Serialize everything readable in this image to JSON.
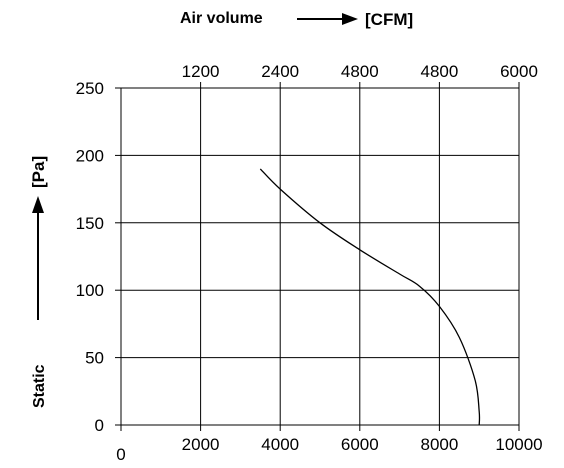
{
  "chart_data": {
    "type": "line",
    "x_bottom": {
      "ticks": [
        "0",
        "2000",
        "4000",
        "6000",
        "8000",
        "10000"
      ],
      "range": [
        0,
        10000
      ]
    },
    "x_top": {
      "label": "Air volume",
      "unit": "[CFM]",
      "ticks": [
        "1200",
        "2400",
        "4800",
        "4800",
        "6000"
      ]
    },
    "y": {
      "label": "Static",
      "unit": "[Pa]",
      "ticks": [
        "0",
        "50",
        "100",
        "150",
        "200",
        "250"
      ],
      "range": [
        0,
        250
      ]
    },
    "grid": true,
    "series": [
      {
        "x": [
          3500,
          4000,
          5000,
          6000,
          7000,
          7500,
          8000,
          8500,
          8900,
          9000,
          9000
        ],
        "y": [
          190,
          175,
          150,
          130,
          112,
          103,
          88,
          65,
          33,
          10,
          0
        ]
      }
    ]
  }
}
